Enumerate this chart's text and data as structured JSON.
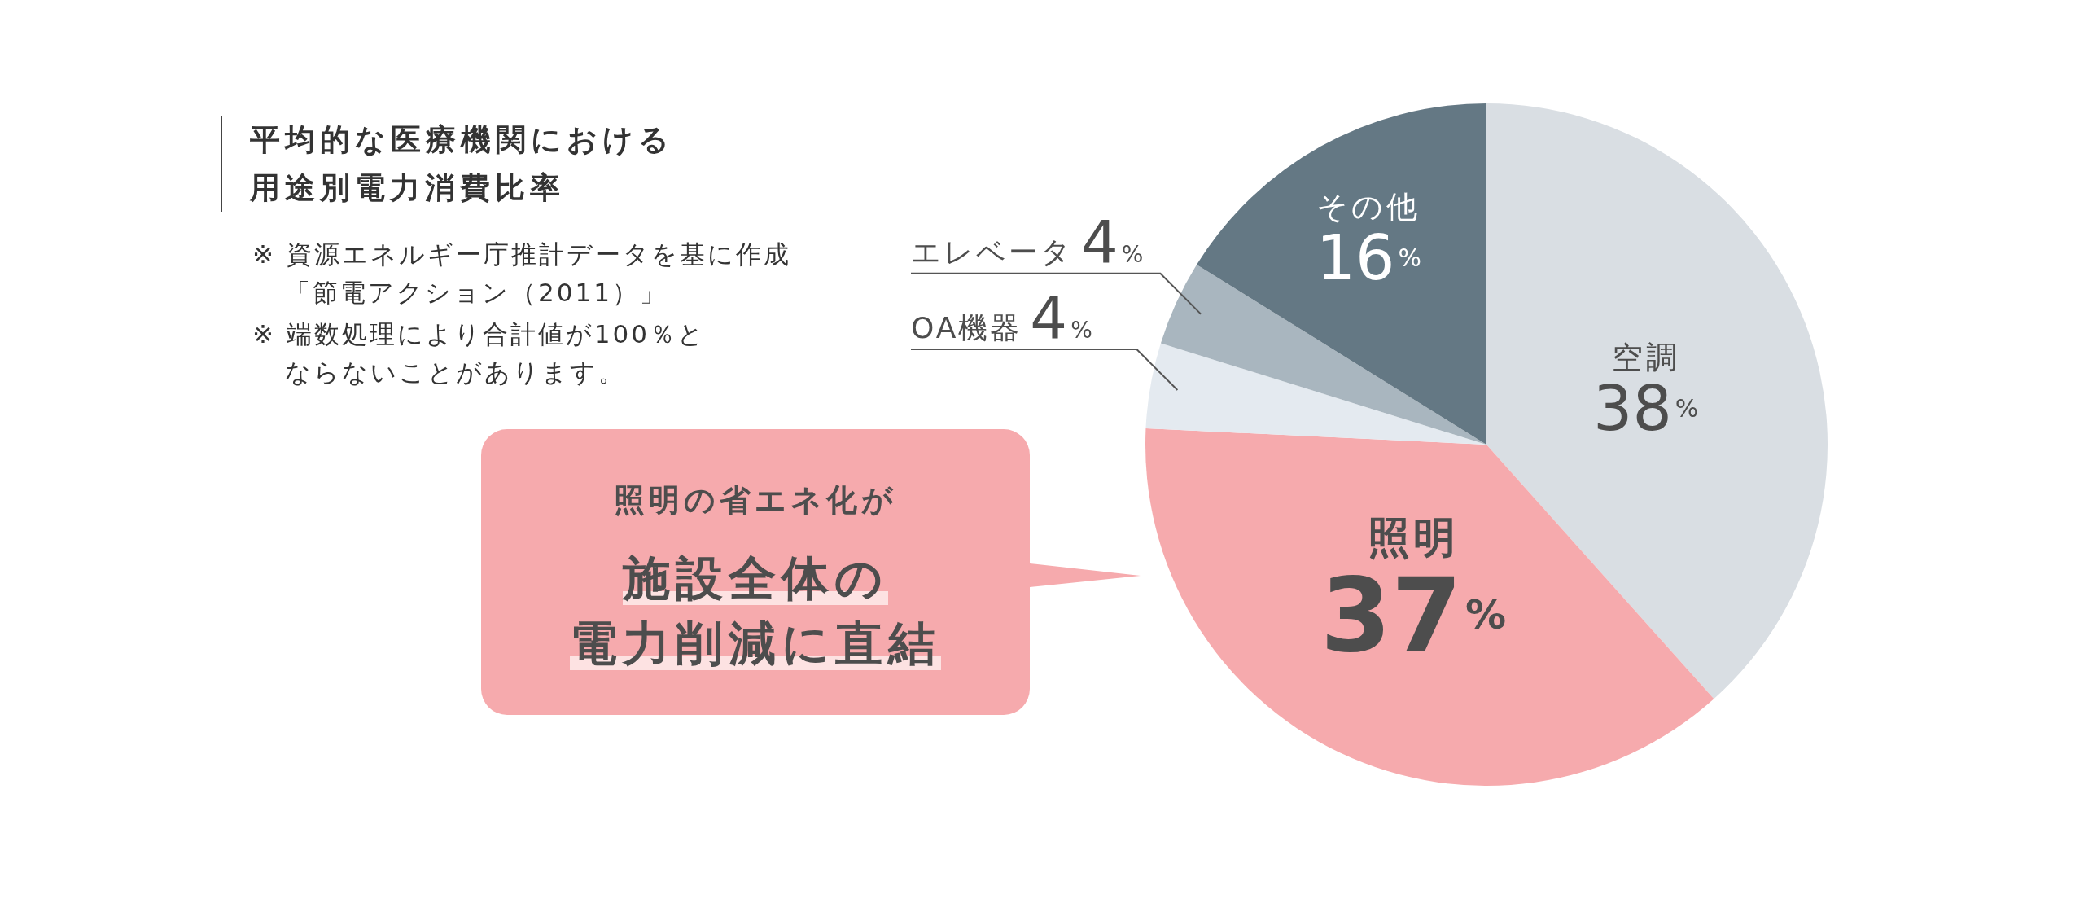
{
  "chart_data": {
    "type": "pie",
    "title": "平均的な医療機関における用途別電力消費比率",
    "categories": [
      "空調",
      "照明",
      "OA機器",
      "エレベータ",
      "その他"
    ],
    "values": [
      38,
      37,
      4,
      4,
      16
    ],
    "value_labels": [
      "38%",
      "37%",
      "4%",
      "4%",
      "16%"
    ],
    "colors": [
      "#d9dee3",
      "#f6aaad",
      "#e4eaf0",
      "#a9b6bf",
      "#647884"
    ],
    "annotations": [
      "※ 資源エネルギー庁推計データを基に作成「節電アクション（2011）」",
      "※ 端数処理により合計値が100％とならないことがあります。",
      "照明の省エネ化が",
      "施設全体の",
      "電力削減に直結"
    ]
  }
}
